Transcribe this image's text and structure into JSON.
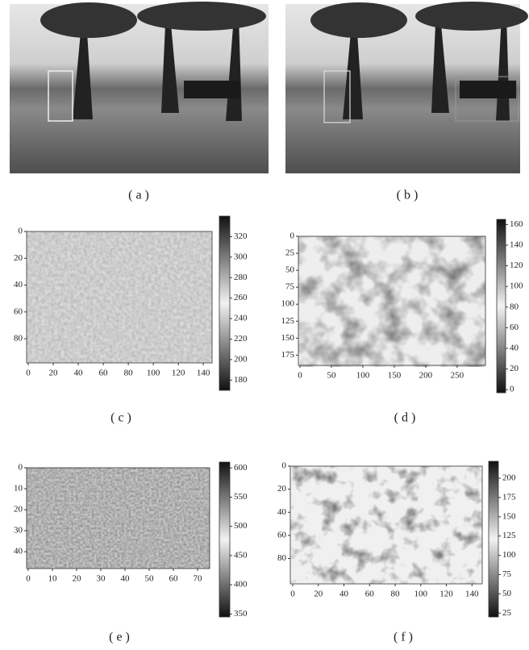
{
  "panels": [
    {
      "caption": "( a )"
    },
    {
      "caption": "( b )"
    },
    {
      "caption": "( c )",
      "xlim": [
        0,
        147
      ],
      "ylim": [
        0,
        98
      ],
      "clim": [
        170,
        340
      ],
      "xticks": [
        0,
        20,
        40,
        60,
        80,
        100,
        120,
        140
      ],
      "yticks": [
        0,
        20,
        40,
        60,
        80
      ],
      "cticks": [
        320,
        300,
        280,
        260,
        240,
        220,
        200,
        180
      ]
    },
    {
      "caption": "( d )",
      "xlim": [
        0,
        295
      ],
      "ylim": [
        0,
        190
      ],
      "clim": [
        -3,
        165
      ],
      "xticks": [
        0,
        50,
        100,
        150,
        200,
        250
      ],
      "yticks": [
        0,
        25,
        50,
        75,
        100,
        125,
        150,
        175
      ],
      "cticks": [
        160,
        140,
        120,
        100,
        80,
        60,
        40,
        20,
        0
      ]
    },
    {
      "caption": "( e )",
      "xlim": [
        0,
        75
      ],
      "ylim": [
        0,
        48
      ],
      "clim": [
        345,
        610
      ],
      "xticks": [
        0,
        10,
        20,
        30,
        40,
        50,
        60,
        70
      ],
      "yticks": [
        0,
        10,
        20,
        30,
        40
      ],
      "cticks": [
        600,
        550,
        500,
        450,
        400,
        350
      ]
    },
    {
      "caption": "( f )",
      "xlim": [
        0,
        148
      ],
      "ylim": [
        0,
        102
      ],
      "clim": [
        20,
        222
      ],
      "xticks": [
        0,
        20,
        40,
        60,
        80,
        100,
        120,
        140
      ],
      "yticks": [
        0,
        20,
        40,
        60,
        80
      ],
      "cticks": [
        200,
        175,
        150,
        125,
        100,
        75,
        50,
        25
      ]
    }
  ]
}
